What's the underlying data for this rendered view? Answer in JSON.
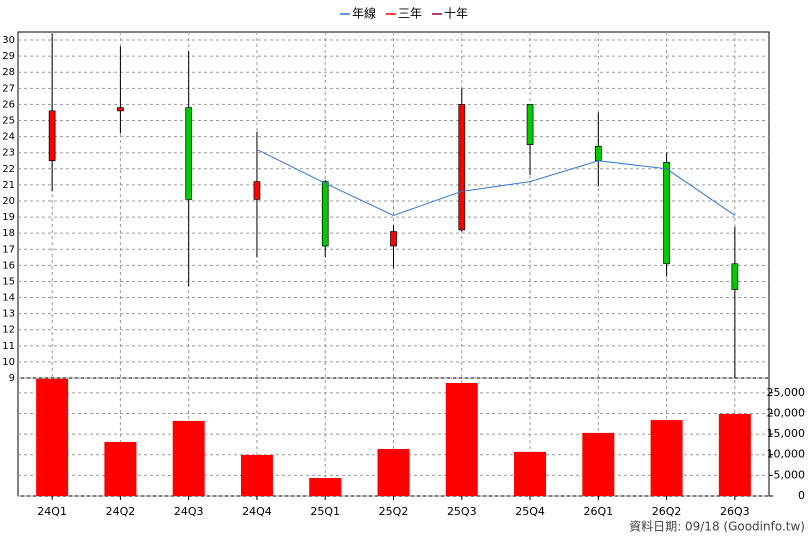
{
  "chart_data": [
    {
      "type": "candlestick",
      "legend": "top",
      "grid": true,
      "open": [
        22.5,
        25.6,
        25.8,
        20.1,
        21.2,
        17.2,
        18.2,
        26.0,
        23.4,
        22.4,
        16.1
      ],
      "high": [
        30.4,
        29.6,
        29.3,
        24.3,
        21.3,
        18.5,
        27.0,
        26.0,
        25.5,
        23.0,
        18.4
      ],
      "low": [
        20.6,
        24.2,
        14.7,
        16.5,
        16.5,
        15.8,
        18.1,
        21.6,
        20.9,
        15.3,
        9.0
      ],
      "close": [
        25.6,
        25.8,
        20.1,
        21.2,
        17.2,
        18.1,
        26.0,
        23.5,
        22.5,
        16.1,
        14.5
      ],
      "up_color": "#ff0000",
      "down_color": "#00cc00",
      "series": [
        {
          "name": "年線",
          "color": "#3377cc",
          "values": [
            null,
            null,
            null,
            23.2,
            21.1,
            19.1,
            20.6,
            21.2,
            22.5,
            22.0,
            19.1
          ]
        },
        {
          "name": "三年",
          "color": "#ff0000",
          "values": [
            null,
            null,
            null,
            null,
            null,
            null,
            null,
            null,
            null,
            null,
            null
          ]
        },
        {
          "name": "十年",
          "color": "#990033",
          "values": [
            null,
            null,
            null,
            null,
            null,
            null,
            null,
            null,
            null,
            null,
            null
          ]
        }
      ],
      "ylim": [
        9,
        30.5
      ],
      "yticks": [
        9,
        10,
        11,
        12,
        13,
        14,
        15,
        16,
        17,
        18,
        19,
        20,
        21,
        22,
        23,
        24,
        25,
        26,
        27,
        28,
        29,
        30
      ]
    },
    {
      "type": "bar",
      "grid": true,
      "color": "#ff0000",
      "categories": [
        "24Q1",
        "24Q2",
        "24Q3",
        "24Q4",
        "25Q1",
        "25Q2",
        "25Q3",
        "25Q4",
        "26Q1",
        "26Q2",
        "26Q3"
      ],
      "values": [
        28400,
        13100,
        18200,
        9950,
        4370,
        11400,
        27400,
        10700,
        15300,
        18400,
        19900
      ],
      "ylim": [
        0,
        28600
      ],
      "yticks": [
        0,
        {
          "value": 5000,
          "label": "5,000"
        },
        {
          "value": 10000,
          "label": "10,000"
        },
        {
          "value": 15000,
          "label": "15,000"
        },
        {
          "value": 20000,
          "label": "20,000"
        },
        {
          "value": 25000,
          "label": "25,000"
        }
      ],
      "source": "資料日期: 09/18  (Goodinfo.tw)"
    }
  ]
}
